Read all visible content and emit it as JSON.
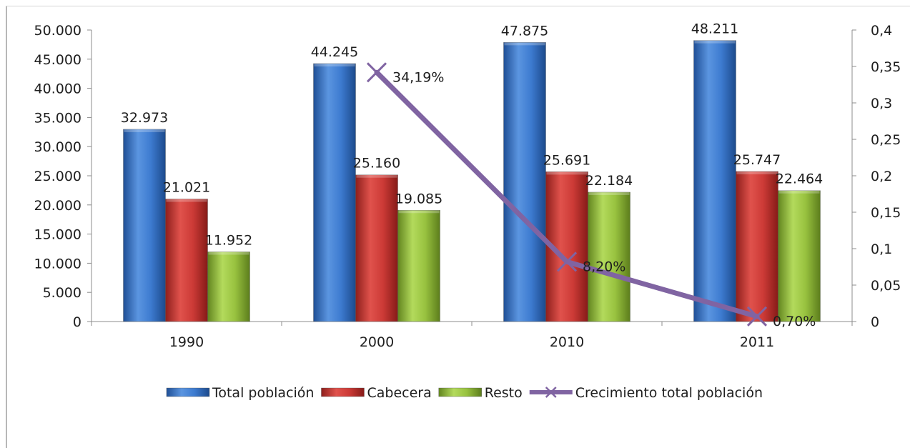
{
  "chart_data": {
    "type": "bar",
    "categories": [
      "1990",
      "2000",
      "2010",
      "2011"
    ],
    "series": [
      {
        "name": "Total población",
        "type": "bar",
        "axis": "left",
        "color": "#3a78c9",
        "values": [
          32973,
          44245,
          47875,
          48211
        ],
        "labels": [
          "32.973",
          "44.245",
          "47.875",
          "48.211"
        ]
      },
      {
        "name": "Cabecera",
        "type": "bar",
        "axis": "left",
        "color": "#cc3a36",
        "values": [
          21021,
          25160,
          25691,
          25747
        ],
        "labels": [
          "21.021",
          "25.160",
          "25.691",
          "25.747"
        ]
      },
      {
        "name": "Resto",
        "type": "bar",
        "axis": "left",
        "color": "#98c23f",
        "values": [
          11952,
          19085,
          22184,
          22464
        ],
        "labels": [
          "11.952",
          "19.085",
          "22.184",
          "22.464"
        ]
      },
      {
        "name": "Crecimiento total población",
        "type": "line",
        "axis": "right",
        "color": "#8064a2",
        "values": [
          null,
          0.3419,
          0.082,
          0.007
        ],
        "labels": [
          "",
          "34,19%",
          "8,20%",
          "0,70%"
        ]
      }
    ],
    "ylim": [
      0,
      50000
    ],
    "y_ticks": [
      "0",
      "5.000",
      "10.000",
      "15.000",
      "20.000",
      "25.000",
      "30.000",
      "35.000",
      "40.000",
      "45.000",
      "50.000"
    ],
    "y2lim": [
      0,
      0.4
    ],
    "y2_ticks": [
      "0",
      "0,05",
      "0,1",
      "0,15",
      "0,2",
      "0,25",
      "0,3",
      "0,35",
      "0,4"
    ],
    "grid": false,
    "legend": "bottom",
    "title": "",
    "xlabel": "",
    "ylabel": "",
    "y2label": ""
  }
}
